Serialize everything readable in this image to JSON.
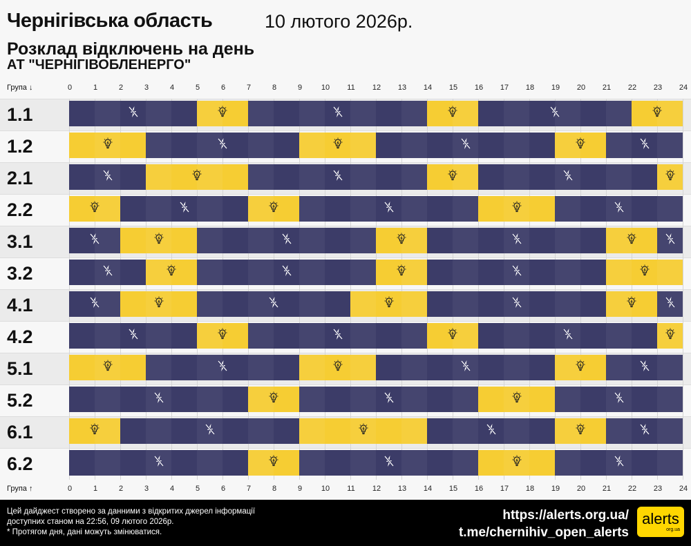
{
  "header": {
    "title": "Чернігівська область",
    "date": "10 лютого 2026р.",
    "subtitle": "Розклад відключень на день",
    "company": "АТ \"ЧЕРНІГІВОБЛЕНЕРГО\""
  },
  "axis": {
    "top_label": "Група ↓",
    "bottom_label": "Група ↑",
    "hours": [
      "0",
      "1",
      "2",
      "3",
      "4",
      "5",
      "6",
      "7",
      "8",
      "9",
      "10",
      "11",
      "12",
      "13",
      "14",
      "15",
      "16",
      "17",
      "18",
      "19",
      "20",
      "21",
      "22",
      "23",
      "24"
    ]
  },
  "colors": {
    "power_on": "#f6cd33",
    "power_off": "#3c3c68"
  },
  "icons": {
    "on": "lightbulb-icon",
    "off": "no-power-icon"
  },
  "groups": [
    {
      "name": "1.1",
      "segments": [
        [
          "off",
          0,
          5
        ],
        [
          "on",
          5,
          7
        ],
        [
          "off",
          7,
          14
        ],
        [
          "on",
          14,
          16
        ],
        [
          "off",
          16,
          22
        ],
        [
          "on",
          22,
          24
        ]
      ]
    },
    {
      "name": "1.2",
      "segments": [
        [
          "on",
          0,
          3
        ],
        [
          "off",
          3,
          9
        ],
        [
          "on",
          9,
          12
        ],
        [
          "off",
          12,
          19
        ],
        [
          "on",
          19,
          21
        ],
        [
          "off",
          21,
          24
        ]
      ]
    },
    {
      "name": "2.1",
      "segments": [
        [
          "off",
          0,
          3
        ],
        [
          "on",
          3,
          7
        ],
        [
          "off",
          7,
          14
        ],
        [
          "on",
          14,
          16
        ],
        [
          "off",
          16,
          23
        ],
        [
          "on",
          23,
          24
        ]
      ]
    },
    {
      "name": "2.2",
      "segments": [
        [
          "on",
          0,
          2
        ],
        [
          "off",
          2,
          7
        ],
        [
          "on",
          7,
          9
        ],
        [
          "off",
          9,
          16
        ],
        [
          "on",
          16,
          19
        ],
        [
          "off",
          19,
          24
        ]
      ]
    },
    {
      "name": "3.1",
      "segments": [
        [
          "off",
          0,
          2
        ],
        [
          "on",
          2,
          5
        ],
        [
          "off",
          5,
          12
        ],
        [
          "on",
          12,
          14
        ],
        [
          "off",
          14,
          21
        ],
        [
          "on",
          21,
          23
        ],
        [
          "off",
          23,
          24
        ]
      ]
    },
    {
      "name": "3.2",
      "segments": [
        [
          "off",
          0,
          3
        ],
        [
          "on",
          3,
          5
        ],
        [
          "off",
          5,
          12
        ],
        [
          "on",
          12,
          14
        ],
        [
          "off",
          14,
          21
        ],
        [
          "on",
          21,
          24
        ]
      ]
    },
    {
      "name": "4.1",
      "segments": [
        [
          "off",
          0,
          2
        ],
        [
          "on",
          2,
          5
        ],
        [
          "off",
          5,
          11
        ],
        [
          "on",
          11,
          14
        ],
        [
          "off",
          14,
          21
        ],
        [
          "on",
          21,
          23
        ],
        [
          "off",
          23,
          24
        ]
      ]
    },
    {
      "name": "4.2",
      "segments": [
        [
          "off",
          0,
          5
        ],
        [
          "on",
          5,
          7
        ],
        [
          "off",
          7,
          14
        ],
        [
          "on",
          14,
          16
        ],
        [
          "off",
          16,
          23
        ],
        [
          "on",
          23,
          24
        ]
      ]
    },
    {
      "name": "5.1",
      "segments": [
        [
          "on",
          0,
          3
        ],
        [
          "off",
          3,
          9
        ],
        [
          "on",
          9,
          12
        ],
        [
          "off",
          12,
          19
        ],
        [
          "on",
          19,
          21
        ],
        [
          "off",
          21,
          24
        ]
      ]
    },
    {
      "name": "5.2",
      "segments": [
        [
          "off",
          0,
          7
        ],
        [
          "on",
          7,
          9
        ],
        [
          "off",
          9,
          16
        ],
        [
          "on",
          16,
          19
        ],
        [
          "off",
          19,
          24
        ]
      ]
    },
    {
      "name": "6.1",
      "segments": [
        [
          "on",
          0,
          2
        ],
        [
          "off",
          2,
          9
        ],
        [
          "on",
          9,
          14
        ],
        [
          "off",
          14,
          19
        ],
        [
          "on",
          19,
          21
        ],
        [
          "off",
          21,
          24
        ]
      ]
    },
    {
      "name": "6.2",
      "segments": [
        [
          "off",
          0,
          7
        ],
        [
          "on",
          7,
          9
        ],
        [
          "off",
          9,
          16
        ],
        [
          "on",
          16,
          19
        ],
        [
          "off",
          19,
          24
        ]
      ]
    }
  ],
  "footer": {
    "note1": "Цей дайджест створено за данними з відкритих джерел інформації",
    "note2": "доступних станом на 22:56, 09 лютого 2026р.",
    "note3": "* Протягом дня, дані можуть змінюватися.",
    "link1": "https://alerts.org.ua/",
    "link2": "t.me/chernihiv_open_alerts",
    "logo_text": "alerts",
    "logo_sub": "org.ua"
  }
}
